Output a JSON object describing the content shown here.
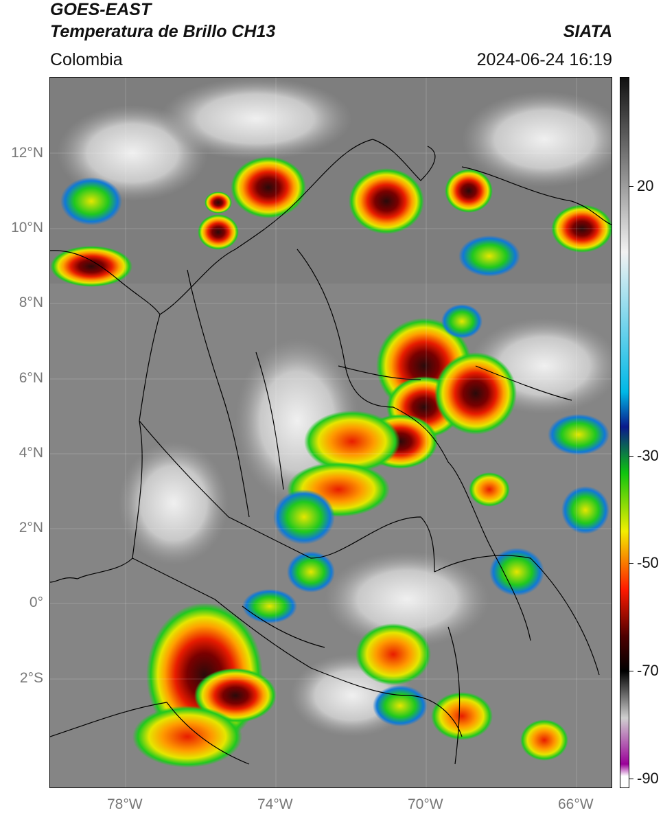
{
  "header": {
    "title_line1": "GOES-EAST",
    "title_line2": "Temperatura de Brillo CH13",
    "region": "Colombia",
    "agency": "SIATA",
    "timestamp": "2024-06-24 16:19"
  },
  "axes": {
    "lat_labels": [
      "12°N",
      "10°N",
      "8°N",
      "6°N",
      "4°N",
      "2°N",
      "0°",
      "2°S"
    ],
    "lon_labels": [
      "78°W",
      "74°W",
      "70°W",
      "66°W"
    ]
  },
  "colorbar": {
    "labels": [
      "20",
      "-30",
      "-50",
      "-70",
      "-90"
    ],
    "stops": [
      {
        "value": 30,
        "color": "#111111"
      },
      {
        "value": 0,
        "color": "#f2f2f2"
      },
      {
        "value": -24,
        "color": "#00b8e6"
      },
      {
        "value": -30,
        "color": "#0a1a8c"
      },
      {
        "value": -38,
        "color": "#0fc40f"
      },
      {
        "value": -48,
        "color": "#f2ee00"
      },
      {
        "value": -58,
        "color": "#ff1a00"
      },
      {
        "value": -66,
        "color": "#4d0000"
      },
      {
        "value": -72,
        "color": "#000000"
      },
      {
        "value": -80,
        "color": "#d0d0d0"
      },
      {
        "value": -88,
        "color": "#9a0099"
      },
      {
        "value": -90,
        "color": "#ffffff"
      }
    ]
  },
  "colors": {
    "background_gray": "#8a8a8a",
    "cold_cloud_red": "#e81c00",
    "cold_cloud_yellow": "#e6e600",
    "cold_cloud_green": "#1fc81f",
    "cold_cloud_blue": "#1078d8",
    "cloud_core": "#3a1010"
  }
}
